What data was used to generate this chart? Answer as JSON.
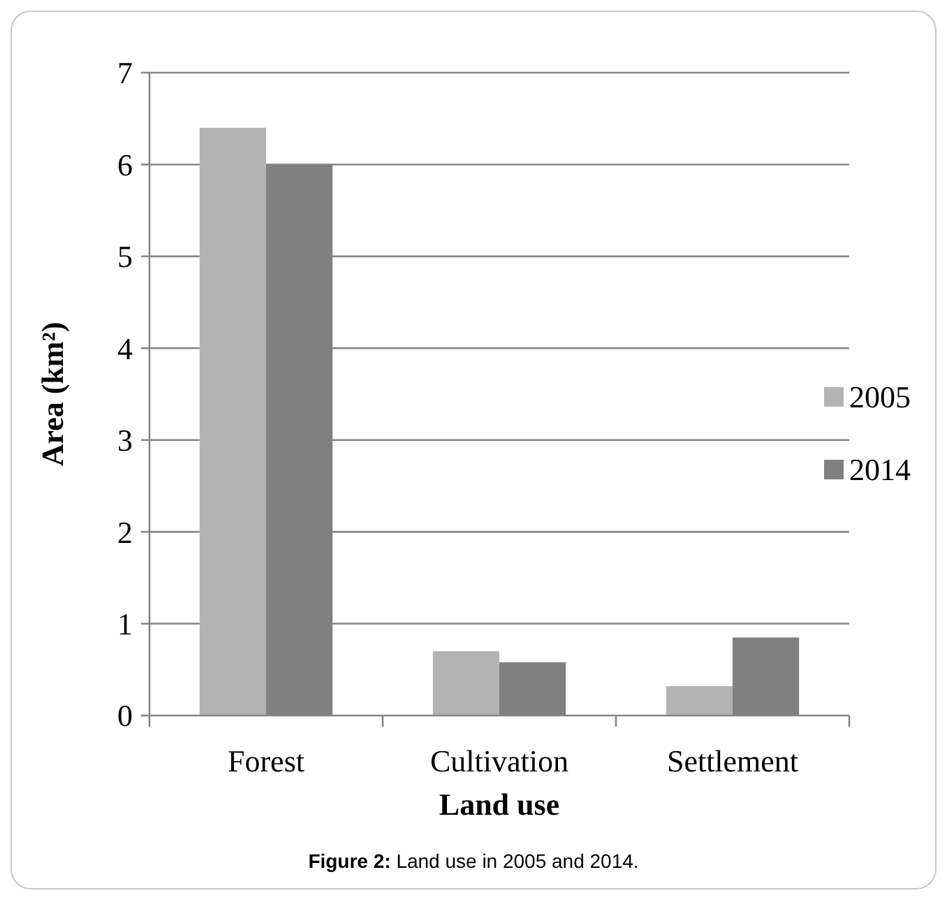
{
  "chart_data": {
    "type": "bar",
    "xlabel": "Land use",
    "ylabel": "Area (km²)",
    "categories": [
      "Forest",
      "Cultivation",
      "Settlement"
    ],
    "series": [
      {
        "name": "2005",
        "color": "#b3b3b3",
        "values": [
          6.4,
          0.7,
          0.32
        ]
      },
      {
        "name": "2014",
        "color": "#808080",
        "values": [
          6.0,
          0.58,
          0.85
        ]
      }
    ],
    "ylim": [
      0,
      7
    ],
    "yticks": [
      0,
      1,
      2,
      3,
      4,
      5,
      6,
      7
    ],
    "grid": "y",
    "legend": "right",
    "annotations": [
      "Figure 2: Land use in 2005 and 2014."
    ]
  }
}
